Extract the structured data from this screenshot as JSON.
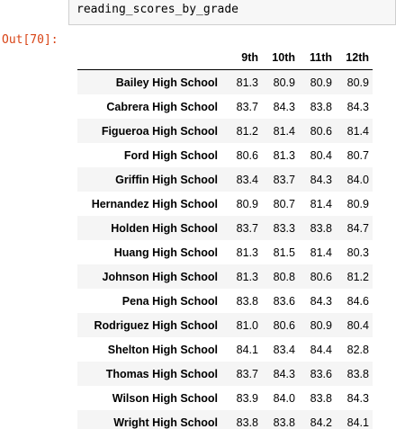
{
  "input": {
    "code": "reading_scores_by_grade"
  },
  "output": {
    "prompt": "Out[70]:"
  },
  "table": {
    "columns": [
      "9th",
      "10th",
      "11th",
      "12th"
    ],
    "rows": [
      {
        "school": "Bailey High School",
        "values": [
          "81.3",
          "80.9",
          "80.9",
          "80.9"
        ]
      },
      {
        "school": "Cabrera High School",
        "values": [
          "83.7",
          "84.3",
          "83.8",
          "84.3"
        ]
      },
      {
        "school": "Figueroa High School",
        "values": [
          "81.2",
          "81.4",
          "80.6",
          "81.4"
        ]
      },
      {
        "school": "Ford High School",
        "values": [
          "80.6",
          "81.3",
          "80.4",
          "80.7"
        ]
      },
      {
        "school": "Griffin High School",
        "values": [
          "83.4",
          "83.7",
          "84.3",
          "84.0"
        ]
      },
      {
        "school": "Hernandez High School",
        "values": [
          "80.9",
          "80.7",
          "81.4",
          "80.9"
        ]
      },
      {
        "school": "Holden High School",
        "values": [
          "83.7",
          "83.3",
          "83.8",
          "84.7"
        ]
      },
      {
        "school": "Huang High School",
        "values": [
          "81.3",
          "81.5",
          "81.4",
          "80.3"
        ]
      },
      {
        "school": "Johnson High School",
        "values": [
          "81.3",
          "80.8",
          "80.6",
          "81.2"
        ]
      },
      {
        "school": "Pena High School",
        "values": [
          "83.8",
          "83.6",
          "84.3",
          "84.6"
        ]
      },
      {
        "school": "Rodriguez High School",
        "values": [
          "81.0",
          "80.6",
          "80.9",
          "80.4"
        ]
      },
      {
        "school": "Shelton High School",
        "values": [
          "84.1",
          "83.4",
          "84.4",
          "82.8"
        ]
      },
      {
        "school": "Thomas High School",
        "values": [
          "83.7",
          "84.3",
          "83.6",
          "83.8"
        ]
      },
      {
        "school": "Wilson High School",
        "values": [
          "83.9",
          "84.0",
          "83.8",
          "84.3"
        ]
      },
      {
        "school": "Wright High School",
        "values": [
          "83.8",
          "83.8",
          "84.2",
          "84.1"
        ]
      }
    ]
  }
}
